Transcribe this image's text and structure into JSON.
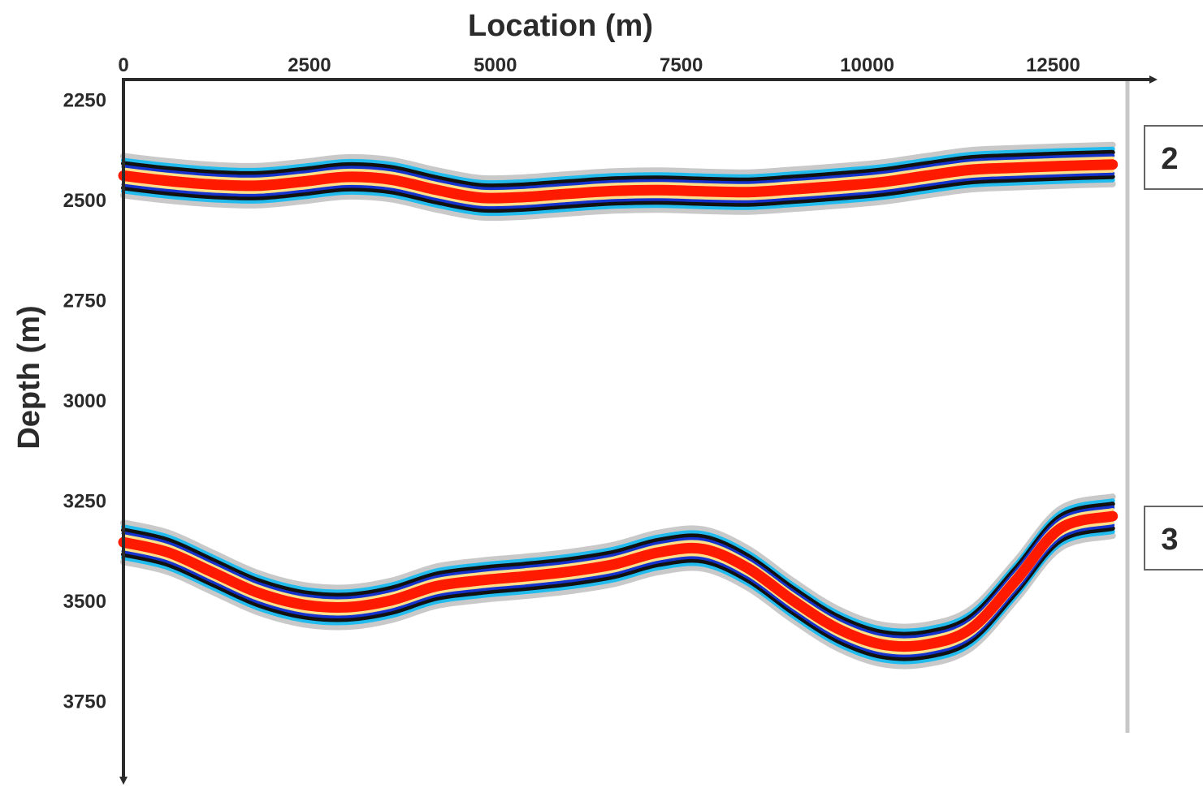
{
  "chart_data": {
    "type": "line",
    "title": "",
    "xlabel": "Location (m)",
    "ylabel": "Depth (m)",
    "xlim": [
      0,
      13500
    ],
    "ylim": [
      2200,
      3950
    ],
    "y_inverted": true,
    "x_axis_position": "top",
    "x_ticks": [
      0,
      2500,
      5000,
      7500,
      10000,
      12500
    ],
    "x_tick_labels": [
      "0",
      "2500",
      "5000",
      "7500",
      "10000",
      "12500"
    ],
    "y_ticks": [
      2250,
      2500,
      2750,
      3000,
      3250,
      3500,
      3750
    ],
    "y_tick_labels": [
      "2250",
      "2500",
      "2750",
      "3000",
      "3250",
      "3500",
      "3750"
    ],
    "grid": false,
    "series": [
      {
        "name": "2",
        "color": "#ff1a00",
        "x": [
          0,
          600,
          1200,
          1800,
          2400,
          3000,
          3600,
          4200,
          4800,
          5400,
          6000,
          6600,
          7200,
          7800,
          8400,
          9000,
          9600,
          10200,
          10800,
          11400,
          12000,
          12600,
          13300
        ],
        "y": [
          2440,
          2453,
          2462,
          2465,
          2455,
          2443,
          2450,
          2475,
          2495,
          2493,
          2485,
          2478,
          2476,
          2479,
          2481,
          2474,
          2466,
          2456,
          2440,
          2425,
          2420,
          2416,
          2412
        ]
      },
      {
        "name": "3",
        "color": "#ff1a00",
        "x": [
          0,
          600,
          1200,
          1800,
          2400,
          3000,
          3600,
          4200,
          4800,
          5400,
          6000,
          6600,
          7200,
          7800,
          8400,
          9000,
          9600,
          10200,
          10800,
          11400,
          12000,
          12600,
          13300
        ],
        "y": [
          3355,
          3380,
          3430,
          3480,
          3510,
          3517,
          3500,
          3465,
          3450,
          3440,
          3428,
          3410,
          3380,
          3372,
          3420,
          3500,
          3570,
          3610,
          3610,
          3570,
          3450,
          3320,
          3290
        ]
      }
    ],
    "horizon_labels": [
      "2",
      "3"
    ]
  }
}
